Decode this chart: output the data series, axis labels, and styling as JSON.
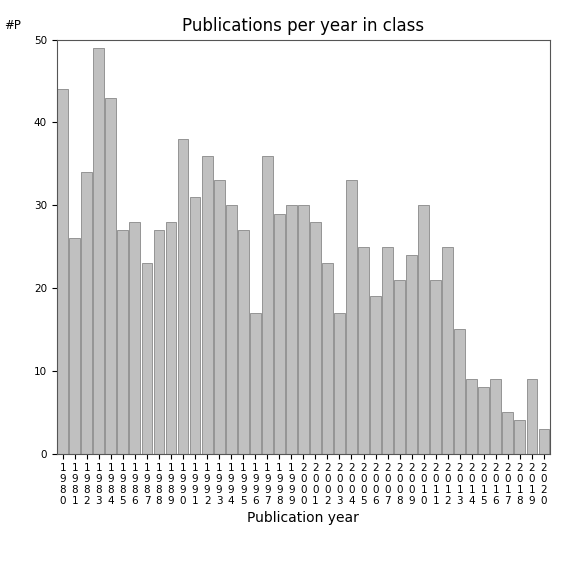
{
  "title": "Publications per year in class",
  "xlabel": "Publication year",
  "ylabel_annotation": "#P",
  "years": [
    "1980",
    "1981",
    "1982",
    "1983",
    "1984",
    "1985",
    "1986",
    "1987",
    "1988",
    "1989",
    "1990",
    "1991",
    "1992",
    "1993",
    "1994",
    "1995",
    "1996",
    "1997",
    "1998",
    "1999",
    "2000",
    "2001",
    "2002",
    "2003",
    "2004",
    "2005",
    "2006",
    "2007",
    "2008",
    "2009",
    "2010",
    "2011",
    "2012",
    "2013",
    "2014",
    "2015",
    "2016",
    "2017",
    "2018",
    "2019",
    "2020"
  ],
  "values": [
    44,
    26,
    34,
    49,
    43,
    27,
    28,
    23,
    27,
    28,
    38,
    31,
    36,
    33,
    30,
    27,
    17,
    36,
    29,
    30,
    30,
    28,
    23,
    17,
    33,
    25,
    19,
    25,
    21,
    24,
    30,
    21,
    25,
    15,
    9,
    8,
    9,
    5,
    4,
    9,
    3
  ],
  "bar_color": "#c0c0c0",
  "bar_edge_color": "#888888",
  "ylim": [
    0,
    50
  ],
  "yticks": [
    0,
    10,
    20,
    30,
    40,
    50
  ],
  "background_color": "#ffffff",
  "title_fontsize": 12,
  "xlabel_fontsize": 10,
  "tick_fontsize": 7.5
}
